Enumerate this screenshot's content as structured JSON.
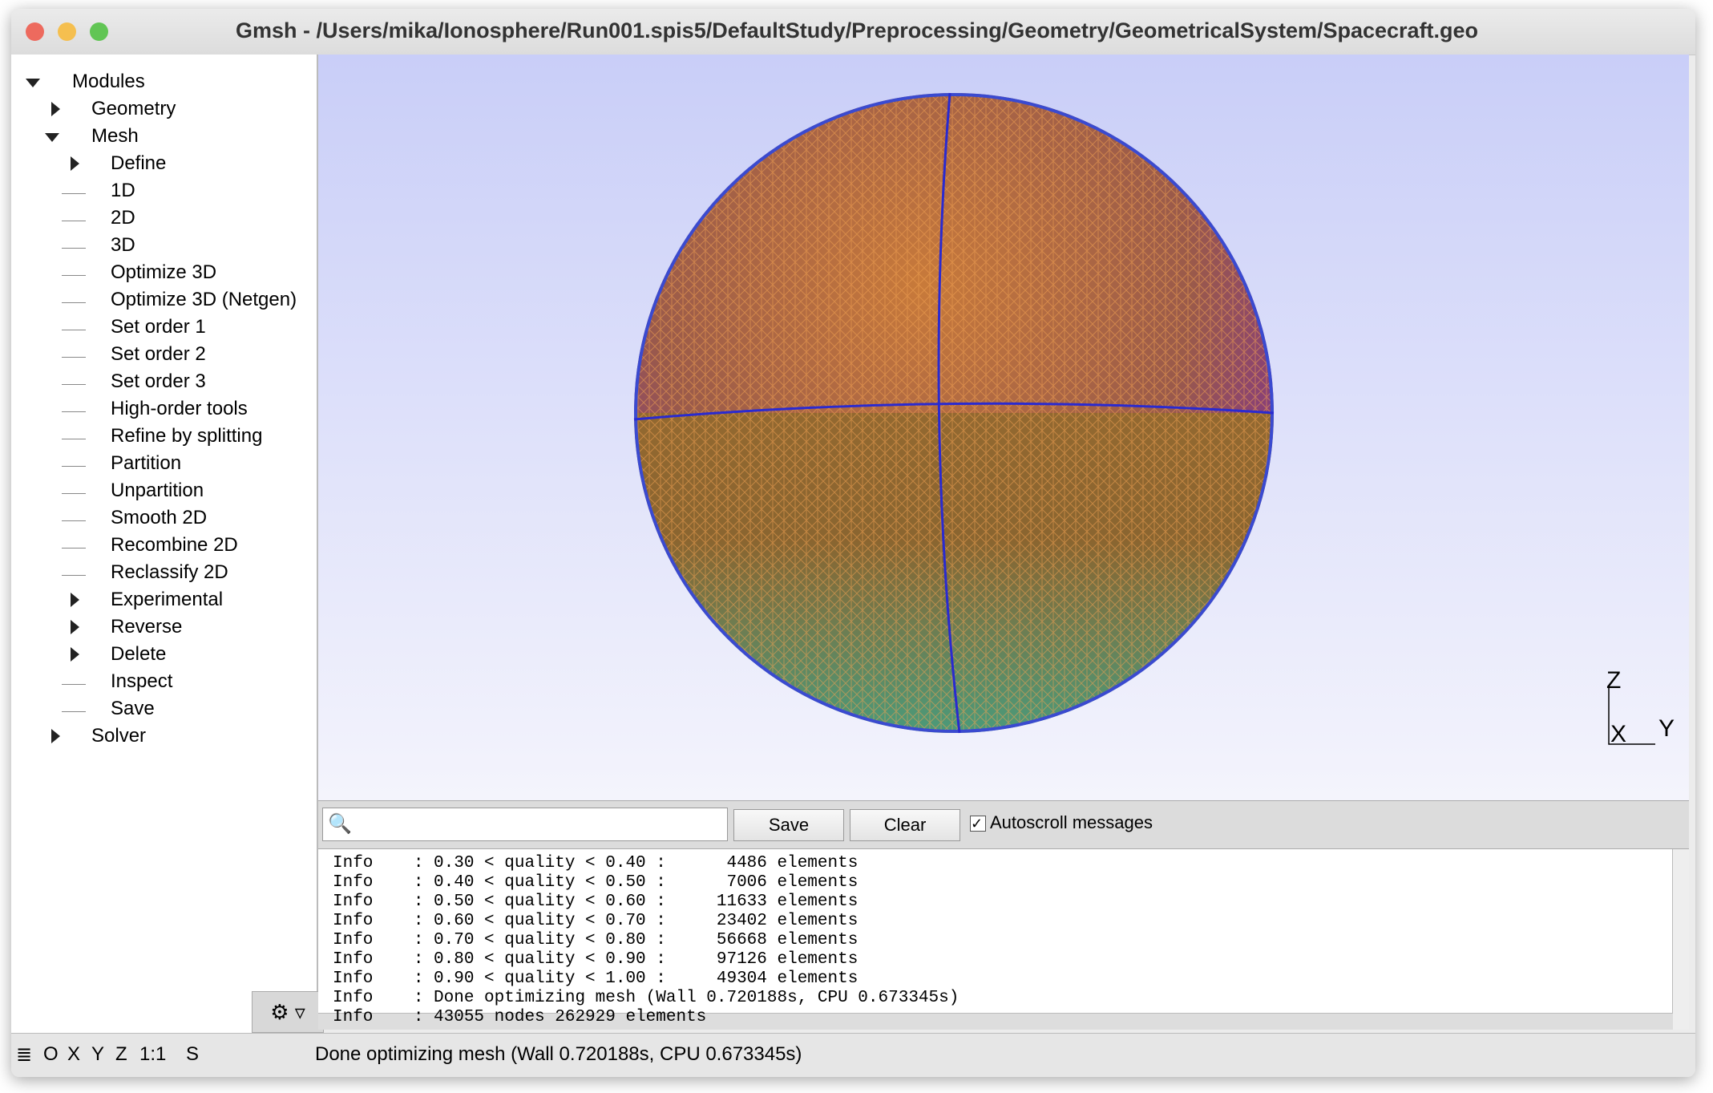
{
  "window": {
    "title": "Gmsh - /Users/mika/Ionosphere/Run001.spis5/DefaultStudy/Preprocessing/Geometry/GeometricalSystem/Spacecraft.geo"
  },
  "tree": [
    {
      "label": "Modules",
      "level": 0,
      "expander": "open"
    },
    {
      "label": "Geometry",
      "level": 1,
      "expander": "closed"
    },
    {
      "label": "Mesh",
      "level": 1,
      "expander": "open"
    },
    {
      "label": "Define",
      "level": 2,
      "expander": "closed"
    },
    {
      "label": "1D",
      "level": 2,
      "expander": null
    },
    {
      "label": "2D",
      "level": 2,
      "expander": null
    },
    {
      "label": "3D",
      "level": 2,
      "expander": null
    },
    {
      "label": "Optimize 3D",
      "level": 2,
      "expander": null
    },
    {
      "label": "Optimize 3D (Netgen)",
      "level": 2,
      "expander": null
    },
    {
      "label": "Set order 1",
      "level": 2,
      "expander": null
    },
    {
      "label": "Set order 2",
      "level": 2,
      "expander": null
    },
    {
      "label": "Set order 3",
      "level": 2,
      "expander": null
    },
    {
      "label": "High-order tools",
      "level": 2,
      "expander": null
    },
    {
      "label": "Refine by splitting",
      "level": 2,
      "expander": null
    },
    {
      "label": "Partition",
      "level": 2,
      "expander": null
    },
    {
      "label": "Unpartition",
      "level": 2,
      "expander": null
    },
    {
      "label": "Smooth 2D",
      "level": 2,
      "expander": null
    },
    {
      "label": "Recombine 2D",
      "level": 2,
      "expander": null
    },
    {
      "label": "Reclassify 2D",
      "level": 2,
      "expander": null
    },
    {
      "label": "Experimental",
      "level": 2,
      "expander": "closed"
    },
    {
      "label": "Reverse",
      "level": 2,
      "expander": "closed"
    },
    {
      "label": "Delete",
      "level": 2,
      "expander": "closed"
    },
    {
      "label": "Inspect",
      "level": 2,
      "expander": null
    },
    {
      "label": "Save",
      "level": 2,
      "expander": null
    },
    {
      "label": "Solver",
      "level": 1,
      "expander": "closed"
    }
  ],
  "axes": {
    "z": "Z",
    "x": "X",
    "y": "Y"
  },
  "toolbar": {
    "save": "Save",
    "clear": "Clear",
    "autoscroll": "Autoscroll messages"
  },
  "log": [
    "Info    : 0.30 < quality < 0.40 :      4486 elements",
    "Info    : 0.40 < quality < 0.50 :      7006 elements",
    "Info    : 0.50 < quality < 0.60 :     11633 elements",
    "Info    : 0.60 < quality < 0.70 :     23402 elements",
    "Info    : 0.70 < quality < 0.80 :     56668 elements",
    "Info    : 0.80 < quality < 0.90 :     97126 elements",
    "Info    : 0.90 < quality < 1.00 :     49304 elements",
    "Info    : Done optimizing mesh (Wall 0.720188s, CPU 0.673345s)",
    "Info    : 43055 nodes 262929 elements"
  ],
  "status": {
    "buttons": [
      "O",
      "X",
      "Y",
      "Z",
      "1:1",
      "S"
    ],
    "message": "Done optimizing mesh (Wall 0.720188s, CPU 0.673345s)"
  }
}
